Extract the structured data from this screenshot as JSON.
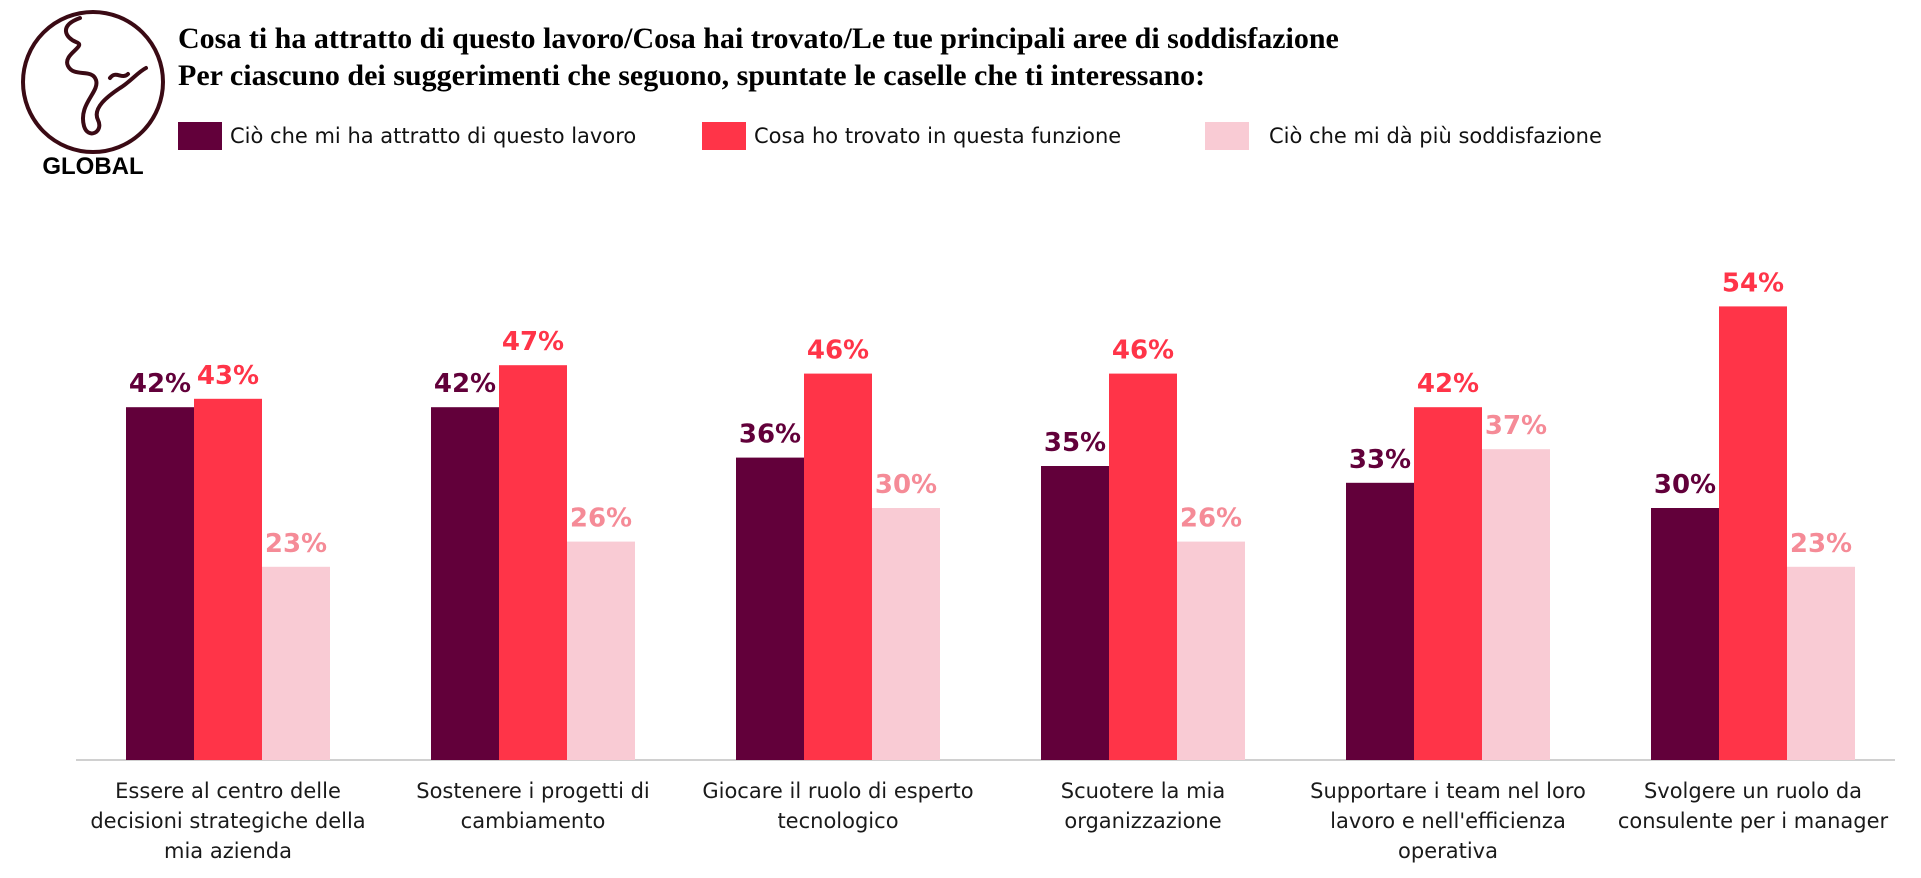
{
  "logo": {
    "text": "GLOBAL"
  },
  "title": {
    "line1": "Cosa ti ha attratto di questo lavoro/Cosa hai trovato/Le tue principali aree di soddisfazione",
    "line2": "Per ciascuno dei suggerimenti che seguono, spuntate le caselle che ti interessano:"
  },
  "colors": {
    "series1": "#62003a",
    "series2": "#ff3448",
    "series3": "#f9cbd4",
    "label3": "#f58b97",
    "axis": "#d0d0d0"
  },
  "chart_data": {
    "type": "bar",
    "title": "Cosa ti ha attratto di questo lavoro/Cosa hai trovato/Le tue principali aree di soddisfazione",
    "ylim": [
      0,
      60
    ],
    "grid": false,
    "legend": "top",
    "categories": [
      [
        "Essere al centro delle",
        "decisioni strategiche della",
        "mia azienda"
      ],
      [
        "Sostenere i progetti di",
        "cambiamento"
      ],
      [
        "Giocare il ruolo di esperto",
        "tecnologico"
      ],
      [
        "Scuotere la mia",
        "organizzazione"
      ],
      [
        "Supportare i team nel loro",
        "lavoro e nell'efficienza",
        "operativa"
      ],
      [
        "Svolgere un ruolo da",
        "consulente per i manager"
      ]
    ],
    "series": [
      {
        "name": "Ciò che mi ha attratto di questo lavoro",
        "values": [
          42,
          42,
          36,
          35,
          33,
          30
        ],
        "labels": [
          "42%",
          "42%",
          "36%",
          "35%",
          "33%",
          "30%"
        ]
      },
      {
        "name": "Cosa ho trovato in questa funzione",
        "values": [
          43,
          47,
          46,
          46,
          42,
          54
        ],
        "labels": [
          "43%",
          "47%",
          "46%",
          "46%",
          "42%",
          "54%"
        ]
      },
      {
        "name": "Ciò che mi dà più soddisfazione",
        "values": [
          23,
          26,
          30,
          26,
          37,
          23
        ],
        "labels": [
          "23%",
          "26%",
          "30%",
          "26%",
          "37%",
          "23%"
        ]
      }
    ]
  }
}
